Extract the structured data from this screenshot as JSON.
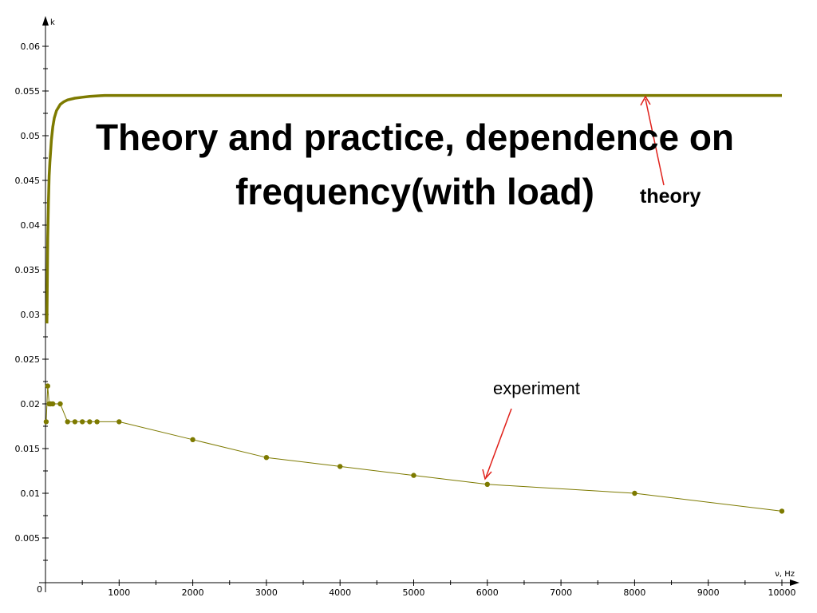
{
  "title": {
    "line1": "Theory and practice, dependence on",
    "line2": "frequency(with load)"
  },
  "annotations": {
    "theory": "theory",
    "experiment": "experiment"
  },
  "colors": {
    "series": "#7d7a00",
    "arrow": "#e0201a",
    "axis": "#000000"
  },
  "chart_data": {
    "type": "line",
    "xlabel": "ν, Hz",
    "ylabel": "k",
    "xlim": [
      0,
      10000
    ],
    "ylim": [
      0,
      0.06
    ],
    "xticks": [
      "0",
      "1000",
      "2000",
      "3000",
      "4000",
      "5000",
      "6000",
      "7000",
      "8000",
      "9000",
      "10000"
    ],
    "yticks": [
      "0.005",
      "0.01",
      "0.015",
      "0.02",
      "0.025",
      "0.03",
      "0.035",
      "0.04",
      "0.045",
      "0.05",
      "0.055",
      "0.06"
    ],
    "grid": false,
    "series": [
      {
        "name": "theory",
        "x": [
          20,
          30,
          40,
          50,
          60,
          80,
          100,
          120,
          150,
          200,
          250,
          300,
          400,
          500,
          600,
          800,
          1000,
          1200,
          2000,
          4000,
          6000,
          8000,
          10000
        ],
        "y": [
          0.029,
          0.0385,
          0.0425,
          0.0455,
          0.047,
          0.0495,
          0.051,
          0.052,
          0.0528,
          0.0535,
          0.0538,
          0.054,
          0.0542,
          0.0543,
          0.0544,
          0.0545,
          0.0545,
          0.0545,
          0.0545,
          0.0545,
          0.0545,
          0.0545,
          0.0545
        ]
      },
      {
        "name": "experiment",
        "x": [
          10,
          30,
          50,
          70,
          100,
          200,
          300,
          400,
          500,
          600,
          700,
          1000,
          2000,
          3000,
          4000,
          5000,
          6000,
          8000,
          10000
        ],
        "y": [
          0.018,
          0.022,
          0.02,
          0.02,
          0.02,
          0.02,
          0.018,
          0.018,
          0.018,
          0.018,
          0.018,
          0.018,
          0.016,
          0.014,
          0.013,
          0.012,
          0.011,
          0.01,
          0.008
        ]
      }
    ]
  }
}
